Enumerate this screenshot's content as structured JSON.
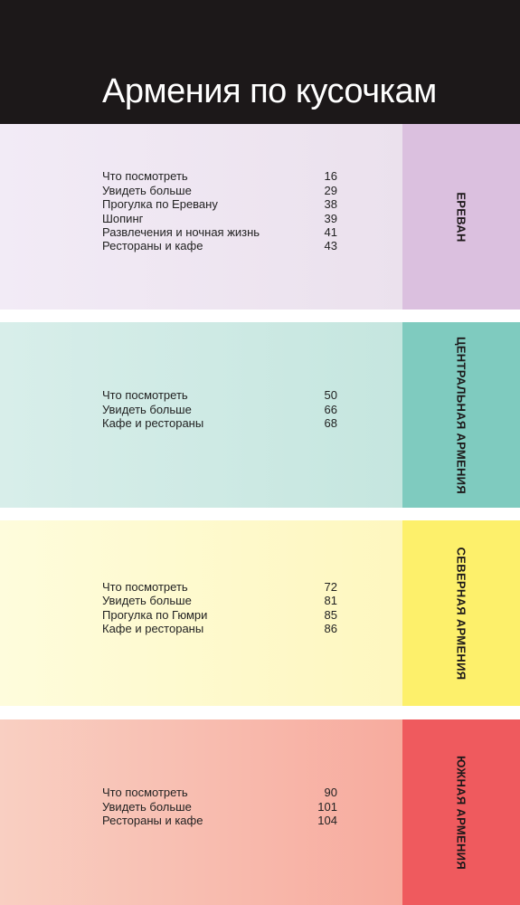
{
  "header": {
    "title": "Армения по кусочкам"
  },
  "sections": [
    {
      "name": "ЕРЕВАН",
      "items": [
        {
          "label": "Что посмотреть",
          "page": 16
        },
        {
          "label": "Увидеть больше",
          "page": 29
        },
        {
          "label": "Прогулка по Еревану",
          "page": 38
        },
        {
          "label": "Шопинг",
          "page": 39
        },
        {
          "label": "Развлечения и ночная жизнь",
          "page": 41
        },
        {
          "label": "Рестораны и кафе",
          "page": 43
        }
      ]
    },
    {
      "name": "ЦЕНТРАЛЬНАЯ АРМЕНИЯ",
      "items": [
        {
          "label": "Что посмотреть",
          "page": 50
        },
        {
          "label": "Увидеть больше",
          "page": 66
        },
        {
          "label": "Кафе и рестораны",
          "page": 68
        }
      ]
    },
    {
      "name": "СЕВЕРНАЯ АРМЕНИЯ",
      "items": [
        {
          "label": "Что посмотреть",
          "page": 72
        },
        {
          "label": "Увидеть больше",
          "page": 81
        },
        {
          "label": "Прогулка по Гюмри",
          "page": 85
        },
        {
          "label": "Кафе и рестораны",
          "page": 86
        }
      ]
    },
    {
      "name": "ЮЖНАЯ АРМЕНИЯ",
      "items": [
        {
          "label": "Что посмотреть",
          "page": 90
        },
        {
          "label": "Увидеть больше",
          "page": 101
        },
        {
          "label": "Рестораны и кафе",
          "page": 104
        }
      ]
    }
  ]
}
